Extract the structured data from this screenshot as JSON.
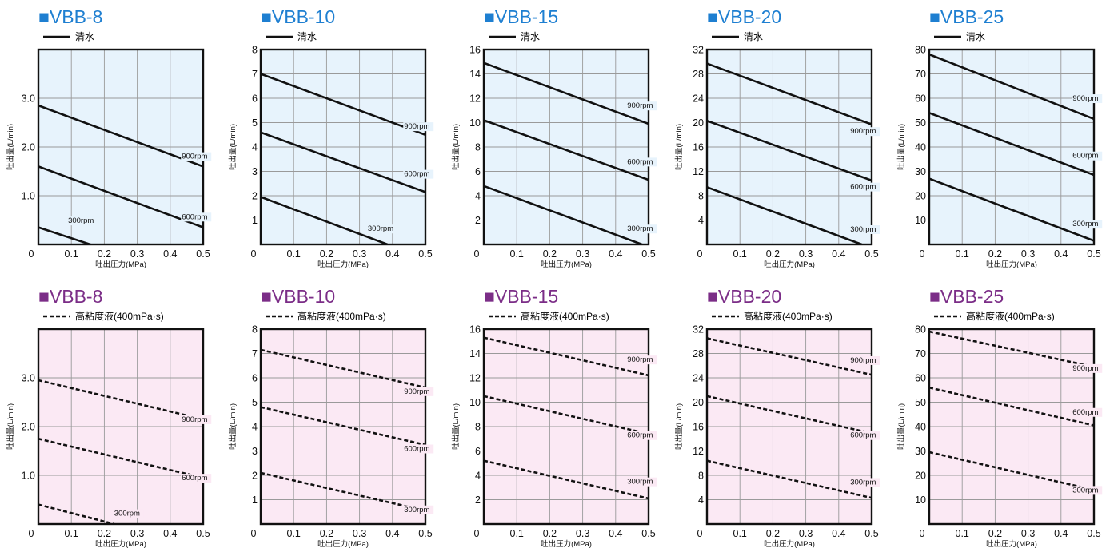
{
  "colors": {
    "top_marker": "#1e7fd1",
    "top_bg": "#e7f3fc",
    "bottom_marker": "#7b2d87",
    "bottom_bg": "#fbe9f4",
    "grid": "#9a9a9a",
    "frame": "#111111"
  },
  "chart_data": [
    {
      "type": "line",
      "row": "top",
      "title": "■VBB-8",
      "legend": "清水",
      "line_style": "solid",
      "xlabel": "吐出圧力(MPa)",
      "ylabel": "吐出量(L/min)",
      "xlim": [
        0,
        0.5
      ],
      "ylim": [
        0,
        4
      ],
      "xticks": [
        0.1,
        0.2,
        0.3,
        0.4,
        0.5
      ],
      "yticks": [
        1,
        2,
        3
      ],
      "ytick_labels": [
        "1.0",
        "2.0",
        "3.0"
      ],
      "grid_y": [
        1,
        2,
        3
      ],
      "series": [
        {
          "label": "900rpm",
          "x": [
            0,
            0.5
          ],
          "y": [
            2.85,
            1.6
          ],
          "label_at": [
            0.435,
            1.76
          ]
        },
        {
          "label": "600rpm",
          "x": [
            0,
            0.5
          ],
          "y": [
            1.6,
            0.35
          ],
          "label_at": [
            0.435,
            0.52
          ]
        },
        {
          "label": "300rpm",
          "x": [
            0,
            0.18
          ],
          "y": [
            0.35,
            -0.05
          ],
          "label_at": [
            0.09,
            0.44
          ]
        }
      ]
    },
    {
      "type": "line",
      "row": "top",
      "title": "■VBB-10",
      "legend": "清水",
      "line_style": "solid",
      "xlabel": "吐出圧力(MPa)",
      "ylabel": "吐出量(L/min)",
      "xlim": [
        0,
        0.5
      ],
      "ylim": [
        0,
        8
      ],
      "xticks": [
        0.1,
        0.2,
        0.3,
        0.4,
        0.5
      ],
      "yticks": [
        1,
        2,
        3,
        4,
        5,
        6,
        7,
        8
      ],
      "ytick_labels": [
        "1",
        "2",
        "3",
        "4",
        "5",
        "6",
        "7",
        "8"
      ],
      "grid_y": [
        1,
        2,
        3,
        4,
        5,
        6,
        7
      ],
      "series": [
        {
          "label": "900rpm",
          "x": [
            0,
            0.5
          ],
          "y": [
            7,
            4.5
          ],
          "label_at": [
            0.435,
            4.75
          ]
        },
        {
          "label": "600rpm",
          "x": [
            0,
            0.5
          ],
          "y": [
            4.6,
            2.15
          ],
          "label_at": [
            0.435,
            2.8
          ]
        },
        {
          "label": "300rpm",
          "x": [
            0,
            0.385
          ],
          "y": [
            1.95,
            0
          ],
          "label_at": [
            0.325,
            0.55
          ]
        }
      ]
    },
    {
      "type": "line",
      "row": "top",
      "title": "■VBB-15",
      "legend": "清水",
      "line_style": "solid",
      "xlabel": "吐出圧力(MPa)",
      "ylabel": "吐出量(L/min)",
      "xlim": [
        0,
        0.5
      ],
      "ylim": [
        0,
        16
      ],
      "xticks": [
        0.1,
        0.2,
        0.3,
        0.4,
        0.5
      ],
      "yticks": [
        2,
        4,
        6,
        8,
        10,
        12,
        14,
        16
      ],
      "ytick_labels": [
        "2",
        "4",
        "6",
        "8",
        "10",
        "12",
        "14",
        "16"
      ],
      "grid_y": [
        2,
        4,
        6,
        8,
        10,
        12,
        14
      ],
      "series": [
        {
          "label": "900rpm",
          "x": [
            0,
            0.5
          ],
          "y": [
            14.9,
            9.9
          ],
          "label_at": [
            0.435,
            11.2
          ]
        },
        {
          "label": "600rpm",
          "x": [
            0,
            0.5
          ],
          "y": [
            10.2,
            5.3
          ],
          "label_at": [
            0.435,
            6.6
          ]
        },
        {
          "label": "300rpm",
          "x": [
            0,
            0.48
          ],
          "y": [
            4.8,
            0
          ],
          "label_at": [
            0.435,
            1.1
          ]
        }
      ]
    },
    {
      "type": "line",
      "row": "top",
      "title": "■VBB-20",
      "legend": "清水",
      "line_style": "solid",
      "xlabel": "吐出圧力(MPa)",
      "ylabel": "吐出量(L/min)",
      "xlim": [
        0,
        0.5
      ],
      "ylim": [
        0,
        32
      ],
      "xticks": [
        0.1,
        0.2,
        0.3,
        0.4,
        0.5
      ],
      "yticks": [
        4,
        8,
        12,
        16,
        20,
        24,
        28,
        32
      ],
      "ytick_labels": [
        "4",
        "8",
        "12",
        "16",
        "20",
        "24",
        "28",
        "32"
      ],
      "grid_y": [
        4,
        8,
        12,
        16,
        20,
        24,
        28
      ],
      "series": [
        {
          "label": "900rpm",
          "x": [
            0,
            0.5
          ],
          "y": [
            29.7,
            19.7
          ],
          "label_at": [
            0.435,
            18.2
          ]
        },
        {
          "label": "600rpm",
          "x": [
            0,
            0.5
          ],
          "y": [
            20.3,
            10.5
          ],
          "label_at": [
            0.435,
            9.1
          ]
        },
        {
          "label": "300rpm",
          "x": [
            0,
            0.47
          ],
          "y": [
            9.4,
            0
          ],
          "label_at": [
            0.435,
            2.1
          ]
        }
      ]
    },
    {
      "type": "line",
      "row": "top",
      "title": "■VBB-25",
      "legend": "清水",
      "line_style": "solid",
      "xlabel": "吐出圧力(MPa)",
      "ylabel": "吐出量(L/min)",
      "xlim": [
        0,
        0.5
      ],
      "ylim": [
        0,
        80
      ],
      "xticks": [
        0.1,
        0.2,
        0.3,
        0.4,
        0.5
      ],
      "yticks": [
        10,
        20,
        30,
        40,
        50,
        60,
        70,
        80
      ],
      "ytick_labels": [
        "10",
        "20",
        "30",
        "40",
        "50",
        "60",
        "70",
        "80"
      ],
      "grid_y": [
        10,
        20,
        30,
        40,
        50,
        60,
        70
      ],
      "series": [
        {
          "label": "900rpm",
          "x": [
            0,
            0.5
          ],
          "y": [
            78,
            51.5
          ],
          "label_at": [
            0.435,
            59
          ]
        },
        {
          "label": "600rpm",
          "x": [
            0,
            0.5
          ],
          "y": [
            54,
            28.5
          ],
          "label_at": [
            0.435,
            35.5
          ]
        },
        {
          "label": "300rpm",
          "x": [
            0,
            0.5
          ],
          "y": [
            27,
            1.5
          ],
          "label_at": [
            0.435,
            7.5
          ]
        }
      ]
    },
    {
      "type": "line",
      "row": "bottom",
      "title": "■VBB-8",
      "legend": "高粘度液(400mPa·s)",
      "line_style": "dashed",
      "xlabel": "吐出圧力(MPa)",
      "ylabel": "吐出量(L/min)",
      "xlim": [
        0,
        0.5
      ],
      "ylim": [
        0,
        4
      ],
      "xticks": [
        0.1,
        0.2,
        0.3,
        0.4,
        0.5
      ],
      "yticks": [
        1,
        2,
        3
      ],
      "ytick_labels": [
        "1.0",
        "2.0",
        "3.0"
      ],
      "grid_y": [
        1,
        2,
        3
      ],
      "series": [
        {
          "label": "900rpm",
          "x": [
            0,
            0.5
          ],
          "y": [
            2.95,
            2.15
          ],
          "label_at": [
            0.435,
            2.1
          ]
        },
        {
          "label": "600rpm",
          "x": [
            0,
            0.5
          ],
          "y": [
            1.75,
            0.95
          ],
          "label_at": [
            0.435,
            0.9
          ]
        },
        {
          "label": "300rpm",
          "x": [
            0,
            0.23
          ],
          "y": [
            0.4,
            0
          ],
          "label_at": [
            0.23,
            0.17
          ]
        }
      ]
    },
    {
      "type": "line",
      "row": "bottom",
      "title": "■VBB-10",
      "legend": "高粘度液(400mPa·s)",
      "line_style": "dashed",
      "xlabel": "吐出圧力(MPa)",
      "ylabel": "吐出量(L/min)",
      "xlim": [
        0,
        0.5
      ],
      "ylim": [
        0,
        8
      ],
      "xticks": [
        0.1,
        0.2,
        0.3,
        0.4,
        0.5
      ],
      "yticks": [
        1,
        2,
        3,
        4,
        5,
        6,
        7,
        8
      ],
      "ytick_labels": [
        "1",
        "2",
        "3",
        "4",
        "5",
        "6",
        "7",
        "8"
      ],
      "grid_y": [
        1,
        2,
        3,
        4,
        5,
        6,
        7
      ],
      "series": [
        {
          "label": "900rpm",
          "x": [
            0,
            0.5
          ],
          "y": [
            7.15,
            5.6
          ],
          "label_at": [
            0.435,
            5.35
          ]
        },
        {
          "label": "600rpm",
          "x": [
            0,
            0.5
          ],
          "y": [
            4.8,
            3.25
          ],
          "label_at": [
            0.435,
            3
          ]
        },
        {
          "label": "300rpm",
          "x": [
            0,
            0.5
          ],
          "y": [
            2.1,
            0.55
          ],
          "label_at": [
            0.435,
            0.5
          ]
        }
      ]
    },
    {
      "type": "line",
      "row": "bottom",
      "title": "■VBB-15",
      "legend": "高粘度液(400mPa·s)",
      "line_style": "dashed",
      "xlabel": "吐出圧力(MPa)",
      "ylabel": "吐出量(L/min)",
      "xlim": [
        0,
        0.5
      ],
      "ylim": [
        0,
        16
      ],
      "xticks": [
        0.1,
        0.2,
        0.3,
        0.4,
        0.5
      ],
      "yticks": [
        2,
        4,
        6,
        8,
        10,
        12,
        14,
        16
      ],
      "ytick_labels": [
        "2",
        "4",
        "6",
        "8",
        "10",
        "12",
        "14",
        "16"
      ],
      "grid_y": [
        2,
        4,
        6,
        8,
        10,
        12,
        14
      ],
      "series": [
        {
          "label": "900rpm",
          "x": [
            0,
            0.5
          ],
          "y": [
            15.3,
            12.2
          ],
          "label_at": [
            0.435,
            13.3
          ]
        },
        {
          "label": "600rpm",
          "x": [
            0,
            0.5
          ],
          "y": [
            10.5,
            7.4
          ],
          "label_at": [
            0.435,
            7.1
          ]
        },
        {
          "label": "300rpm",
          "x": [
            0,
            0.5
          ],
          "y": [
            5.2,
            2.1
          ],
          "label_at": [
            0.435,
            3.3
          ]
        }
      ]
    },
    {
      "type": "line",
      "row": "bottom",
      "title": "■VBB-20",
      "legend": "高粘度液(400mPa·s)",
      "line_style": "dashed",
      "xlabel": "吐出圧力(MPa)",
      "ylabel": "吐出量(L/min)",
      "xlim": [
        0,
        0.5
      ],
      "ylim": [
        0,
        32
      ],
      "xticks": [
        0.1,
        0.2,
        0.3,
        0.4,
        0.5
      ],
      "yticks": [
        4,
        8,
        12,
        16,
        20,
        24,
        28,
        32
      ],
      "ytick_labels": [
        "4",
        "8",
        "12",
        "16",
        "20",
        "24",
        "28",
        "32"
      ],
      "grid_y": [
        4,
        8,
        12,
        16,
        20,
        24,
        28
      ],
      "series": [
        {
          "label": "900rpm",
          "x": [
            0,
            0.5
          ],
          "y": [
            30.5,
            24.5
          ],
          "label_at": [
            0.435,
            26.5
          ]
        },
        {
          "label": "600rpm",
          "x": [
            0,
            0.5
          ],
          "y": [
            21,
            14.9
          ],
          "label_at": [
            0.435,
            14.2
          ]
        },
        {
          "label": "300rpm",
          "x": [
            0,
            0.5
          ],
          "y": [
            10.4,
            4.3
          ],
          "label_at": [
            0.435,
            6.5
          ]
        }
      ]
    },
    {
      "type": "line",
      "row": "bottom",
      "title": "■VBB-25",
      "legend": "高粘度液(400mPa·s)",
      "line_style": "dashed",
      "xlabel": "吐出圧力(MPa)",
      "ylabel": "吐出量(L/min)",
      "xlim": [
        0,
        0.5
      ],
      "ylim": [
        0,
        80
      ],
      "xticks": [
        0.1,
        0.2,
        0.3,
        0.4,
        0.5
      ],
      "yticks": [
        10,
        20,
        30,
        40,
        50,
        60,
        70,
        80
      ],
      "ytick_labels": [
        "10",
        "20",
        "30",
        "40",
        "50",
        "60",
        "70",
        "80"
      ],
      "grid_y": [
        10,
        20,
        30,
        40,
        50,
        60,
        70
      ],
      "series": [
        {
          "label": "900rpm",
          "x": [
            0,
            0.5
          ],
          "y": [
            79,
            64.5
          ],
          "label_at": [
            0.435,
            63
          ]
        },
        {
          "label": "600rpm",
          "x": [
            0,
            0.5
          ],
          "y": [
            56,
            40.5
          ],
          "label_at": [
            0.435,
            45
          ]
        },
        {
          "label": "300rpm",
          "x": [
            0,
            0.5
          ],
          "y": [
            29.5,
            14
          ],
          "label_at": [
            0.435,
            13
          ]
        }
      ]
    }
  ]
}
